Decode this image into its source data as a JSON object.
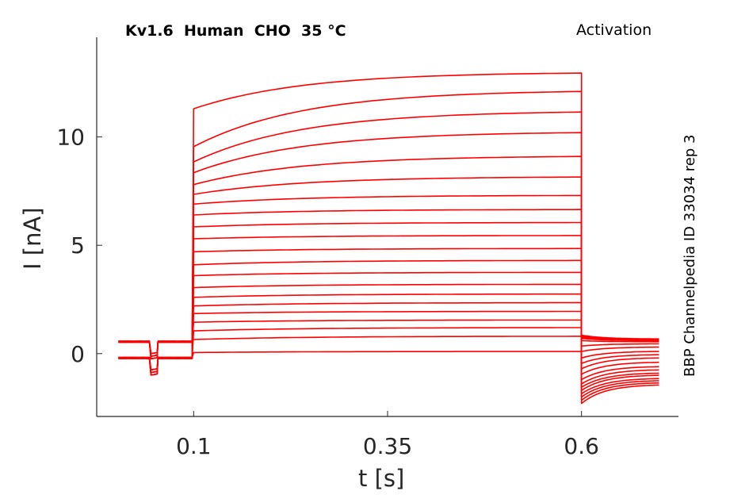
{
  "chart_data": {
    "type": "line",
    "title": "Kv1.6  Human  CHO  35 °C",
    "title_right": "Activation",
    "side_label": "BBP Channelpedia ID 33034 rep 3",
    "xlabel": "t [s]",
    "ylabel": "I [nA]",
    "x_ticks": [
      0.1,
      0.35,
      0.6
    ],
    "x_tick_labels": [
      "0.1",
      "0.35",
      "0.6"
    ],
    "y_ticks": [
      0,
      5,
      10
    ],
    "y_tick_labels": [
      "0",
      "5",
      "10"
    ],
    "xlim": [
      -0.025,
      0.725
    ],
    "ylim": [
      -2.9,
      14.6
    ],
    "grid": false,
    "trace_color": "#ff0000",
    "protocol": {
      "t_start": 0.003,
      "t_step_on": 0.1,
      "t_step_off": 0.6,
      "t_end": 0.7,
      "prepulse_dip": [
        0.044,
        0.054
      ]
    },
    "series": [
      {
        "step_start": 0.05,
        "step_end": 0.1,
        "tail_start": -2.3,
        "tail_end": -1.45
      },
      {
        "step_start": 0.65,
        "step_end": 0.8,
        "tail_start": -2.15,
        "tail_end": -1.35
      },
      {
        "step_start": 1.05,
        "step_end": 1.2,
        "tail_start": -2.0,
        "tail_end": -1.25
      },
      {
        "step_start": 1.45,
        "step_end": 1.55,
        "tail_start": -1.85,
        "tail_end": -1.15
      },
      {
        "step_start": 1.85,
        "step_end": 1.95,
        "tail_start": -1.7,
        "tail_end": -1.0
      },
      {
        "step_start": 2.2,
        "step_end": 2.35,
        "tail_start": -1.55,
        "tail_end": -0.9
      },
      {
        "step_start": 2.6,
        "step_end": 2.75,
        "tail_start": -1.4,
        "tail_end": -0.75
      },
      {
        "step_start": 3.05,
        "step_end": 3.2,
        "tail_start": -1.2,
        "tail_end": -0.6
      },
      {
        "step_start": 3.6,
        "step_end": 3.75,
        "tail_start": -0.95,
        "tail_end": -0.4
      },
      {
        "step_start": 4.1,
        "step_end": 4.3,
        "tail_start": -0.7,
        "tail_end": -0.2
      },
      {
        "step_start": 4.7,
        "step_end": 4.85,
        "tail_start": -0.45,
        "tail_end": -0.05
      },
      {
        "step_start": 5.3,
        "step_end": 5.45,
        "tail_start": -0.2,
        "tail_end": 0.1
      },
      {
        "step_start": 5.85,
        "step_end": 6.05,
        "tail_start": 0.1,
        "tail_end": 0.3
      },
      {
        "step_start": 6.4,
        "step_end": 6.65,
        "tail_start": 0.35,
        "tail_end": 0.45
      },
      {
        "step_start": 6.9,
        "step_end": 7.3,
        "tail_start": 0.6,
        "tail_end": 0.55
      },
      {
        "step_start": 7.35,
        "step_end": 8.15,
        "tail_start": 0.7,
        "tail_end": 0.6
      },
      {
        "step_start": 7.8,
        "step_end": 9.1,
        "tail_start": 0.75,
        "tail_end": 0.62
      },
      {
        "step_start": 8.35,
        "step_end": 10.2,
        "tail_start": 0.78,
        "tail_end": 0.64
      },
      {
        "step_start": 8.85,
        "step_end": 11.15,
        "tail_start": 0.8,
        "tail_end": 0.65
      },
      {
        "step_start": 9.55,
        "step_end": 12.1,
        "tail_start": 0.82,
        "tail_end": 0.66
      },
      {
        "step_start": 11.3,
        "step_end": 12.95,
        "tail_start": 0.85,
        "tail_end": 0.68
      }
    ]
  }
}
